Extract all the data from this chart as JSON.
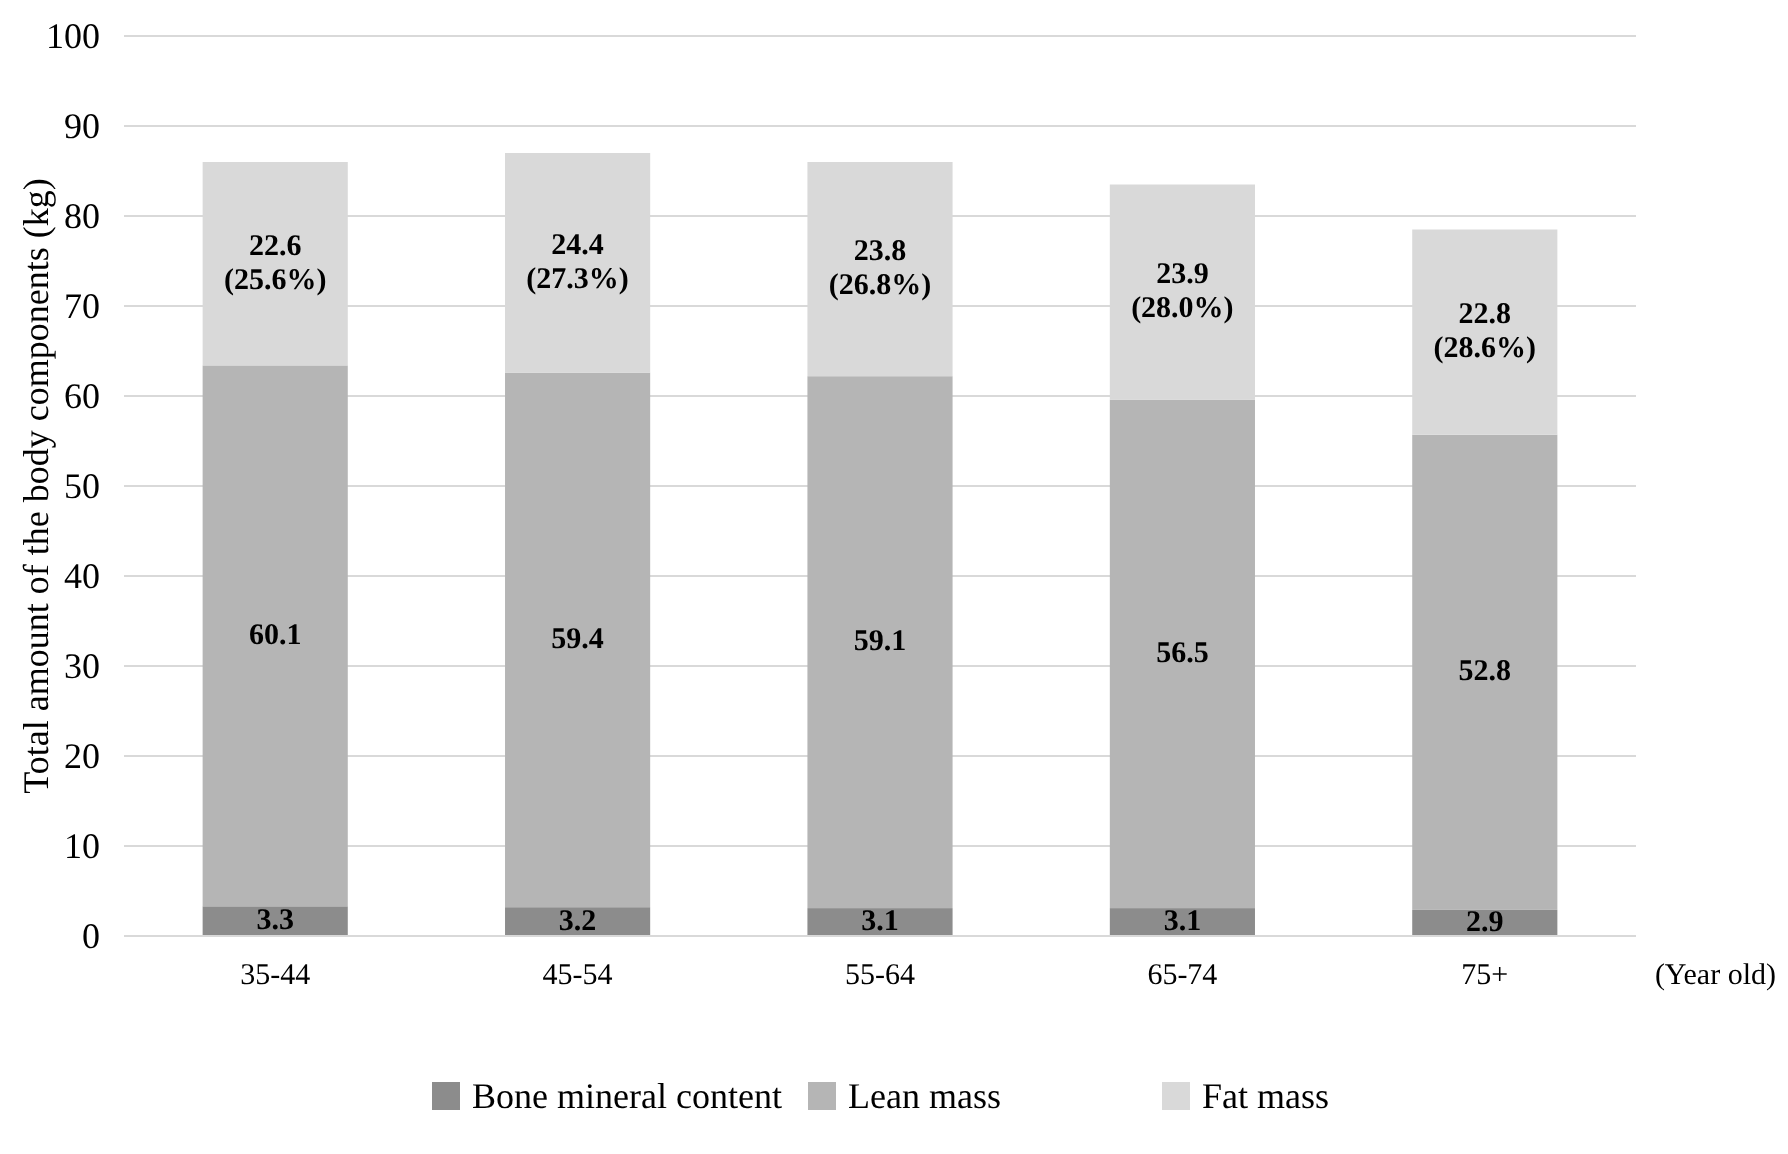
{
  "chart_data": {
    "type": "bar",
    "stacked": true,
    "ylabel": "Total amount of the body components (kg)",
    "xlabel": "(Year old)",
    "categories": [
      "35-44",
      "45-54",
      "55-64",
      "65-74",
      "75+"
    ],
    "series": [
      {
        "name": "Bone mineral content",
        "color": "#8c8c8c",
        "values": [
          3.3,
          3.2,
          3.1,
          3.1,
          2.9
        ],
        "value_labels": [
          "3.3",
          "3.2",
          "3.1",
          "3.1",
          "2.9"
        ]
      },
      {
        "name": "Lean mass",
        "color": "#b5b5b5",
        "values": [
          60.1,
          59.4,
          59.1,
          56.5,
          52.8
        ],
        "value_labels": [
          "60.1",
          "59.4",
          "59.1",
          "56.5",
          "52.8"
        ]
      },
      {
        "name": "Fat mass",
        "color": "#d9d9d9",
        "values": [
          22.6,
          24.4,
          23.8,
          23.9,
          22.8
        ],
        "value_labels": [
          "22.6\n(25.6%)",
          "24.4\n(27.3%)",
          "23.8\n(26.8%)",
          "23.9\n(28.0%)",
          "22.8\n(28.6%)"
        ]
      }
    ],
    "ylim": [
      0,
      100
    ],
    "yticks": [
      0,
      10,
      20,
      30,
      40,
      50,
      60,
      70,
      80,
      90,
      100
    ],
    "grid": "y",
    "legend": "bottom"
  }
}
